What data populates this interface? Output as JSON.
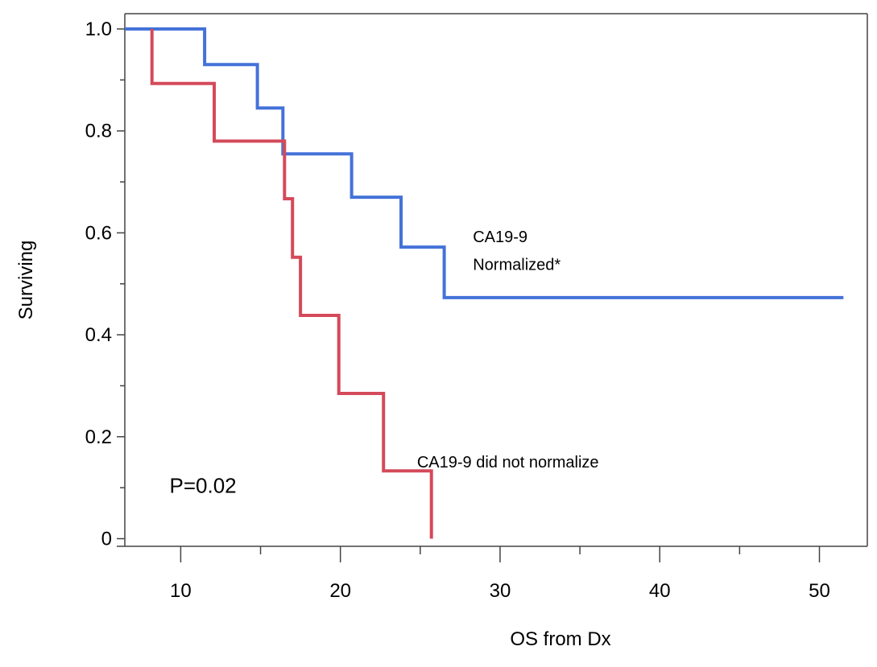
{
  "chart_data": {
    "type": "line",
    "subtype": "kaplan-meier-step",
    "title": "",
    "xlabel": "OS from Dx",
    "ylabel": "Surviving",
    "xlim": [
      6.5,
      53
    ],
    "ylim": [
      -0.015,
      1.03
    ],
    "x_ticks": [
      10,
      20,
      30,
      40,
      50
    ],
    "x_ticks_minor": [
      15,
      25,
      35,
      45
    ],
    "y_ticks": [
      {
        "value": 0,
        "label": "0"
      },
      {
        "value": 0.2,
        "label": "0.2"
      },
      {
        "value": 0.4,
        "label": "0.4"
      },
      {
        "value": 0.6,
        "label": "0.6"
      },
      {
        "value": 0.8,
        "label": "0.8"
      },
      {
        "value": 1.0,
        "label": "1.0"
      }
    ],
    "y_ticks_minor": [
      0.1,
      0.3,
      0.5,
      0.7,
      0.9
    ],
    "grid": false,
    "frame": "top-left-right-bottom-axis",
    "series": [
      {
        "label": "CA19-9 Normalized*",
        "color": "#4472d8",
        "points": [
          [
            6.5,
            1.0
          ],
          [
            11.5,
            1.0
          ],
          [
            11.5,
            0.93
          ],
          [
            14.8,
            0.93
          ],
          [
            14.8,
            0.845
          ],
          [
            16.4,
            0.845
          ],
          [
            16.4,
            0.755
          ],
          [
            20.7,
            0.755
          ],
          [
            20.7,
            0.67
          ],
          [
            23.8,
            0.67
          ],
          [
            23.8,
            0.572
          ],
          [
            26.5,
            0.572
          ],
          [
            26.5,
            0.473
          ],
          [
            51.5,
            0.473
          ]
        ]
      },
      {
        "label": "CA19-9 did not normalize",
        "color": "#d44a5a",
        "points": [
          [
            8.2,
            1.0
          ],
          [
            8.2,
            0.893
          ],
          [
            12.1,
            0.893
          ],
          [
            12.1,
            0.78
          ],
          [
            16.5,
            0.78
          ],
          [
            16.5,
            0.667
          ],
          [
            17.0,
            0.667
          ],
          [
            17.0,
            0.552
          ],
          [
            17.5,
            0.552
          ],
          [
            17.5,
            0.438
          ],
          [
            19.9,
            0.438
          ],
          [
            19.9,
            0.285
          ],
          [
            22.7,
            0.285
          ],
          [
            22.7,
            0.133
          ],
          [
            25.7,
            0.133
          ],
          [
            25.7,
            0.0
          ]
        ]
      }
    ],
    "annotations": [
      {
        "text": "CA19-9",
        "x": 28.3,
        "y": 0.582
      },
      {
        "text": "Normalized*",
        "x": 28.3,
        "y": 0.527
      },
      {
        "text": "CA19-9 did not normalize",
        "x": 24.8,
        "y": 0.14
      },
      {
        "text": "P=0.02",
        "x": 9.3,
        "y": 0.09
      }
    ]
  }
}
